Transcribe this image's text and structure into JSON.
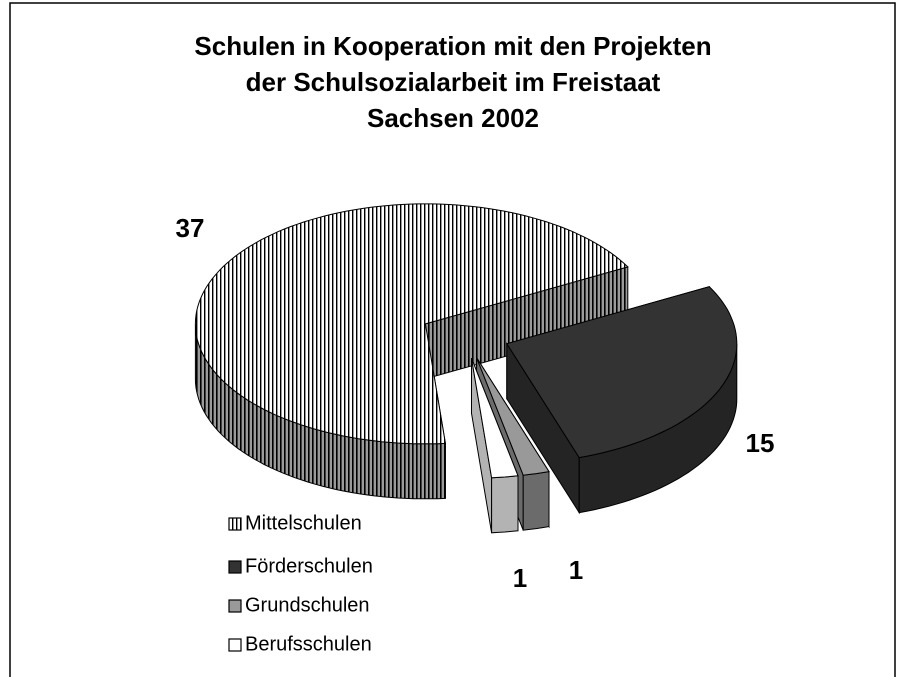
{
  "chart_data": {
    "type": "pie3d",
    "title": [
      "Schulen in Kooperation mit den  Projekten",
      "der Schulsozialarbeit im  Freistaat",
      "Sachsen 2002"
    ],
    "categories": [
      "Mittelschulen",
      "Förderschulen",
      "Grundschulen",
      "Berufsschulen"
    ],
    "values": [
      37,
      15,
      1,
      1
    ],
    "colors": [
      "#ffffff",
      "#333333",
      "#999999",
      "#ffffff"
    ],
    "patterns": [
      "vertical-stripes",
      "solid",
      "solid",
      "solid"
    ],
    "legend": "bottom-left"
  }
}
